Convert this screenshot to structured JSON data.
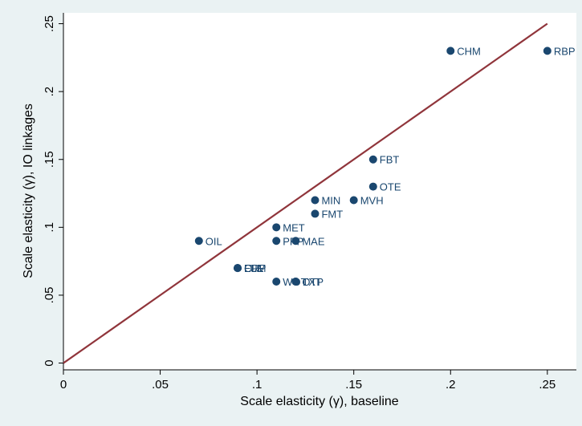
{
  "chart_data": {
    "type": "scatter",
    "title": "",
    "xlabel": "Scale elasticity (γ), baseline",
    "ylabel": "Scale elasticity (γ), IO linkages",
    "xlim": [
      0,
      0.265
    ],
    "ylim": [
      -0.005,
      0.258
    ],
    "xticks": [
      {
        "value": 0,
        "label": "0"
      },
      {
        "value": 0.05,
        "label": ".05"
      },
      {
        "value": 0.1,
        "label": ".1"
      },
      {
        "value": 0.15,
        "label": ".15"
      },
      {
        "value": 0.2,
        "label": ".2"
      },
      {
        "value": 0.25,
        "label": ".25"
      }
    ],
    "yticks": [
      {
        "value": 0,
        "label": "0"
      },
      {
        "value": 0.05,
        "label": ".05"
      },
      {
        "value": 0.1,
        "label": ".1"
      },
      {
        "value": 0.15,
        "label": ".15"
      },
      {
        "value": 0.2,
        "label": ".2"
      },
      {
        "value": 0.25,
        "label": ".25"
      }
    ],
    "grid": false,
    "points": [
      {
        "label": "CHM",
        "x": 0.2,
        "y": 0.23
      },
      {
        "label": "RBP",
        "x": 0.25,
        "y": 0.23
      },
      {
        "label": "FBT",
        "x": 0.16,
        "y": 0.15
      },
      {
        "label": "OTE",
        "x": 0.16,
        "y": 0.13
      },
      {
        "label": "MIN",
        "x": 0.13,
        "y": 0.12
      },
      {
        "label": "MVH",
        "x": 0.15,
        "y": 0.12
      },
      {
        "label": "FMT",
        "x": 0.13,
        "y": 0.11
      },
      {
        "label": "MET",
        "x": 0.11,
        "y": 0.1
      },
      {
        "label": "OIL",
        "x": 0.07,
        "y": 0.09
      },
      {
        "label": "PPP",
        "x": 0.11,
        "y": 0.09
      },
      {
        "label": "MAE",
        "x": 0.12,
        "y": 0.09
      },
      {
        "label": "CRP",
        "x": 0.09,
        "y": 0.07
      },
      {
        "label": "ELE",
        "x": 0.09,
        "y": 0.07
      },
      {
        "label": "LUM",
        "x": 0.09,
        "y": 0.07
      },
      {
        "label": "WOT",
        "x": 0.11,
        "y": 0.06
      },
      {
        "label": "OTP",
        "x": 0.12,
        "y": 0.06
      },
      {
        "label": "TXT",
        "x": 0.12,
        "y": 0.06
      }
    ],
    "reference_line": {
      "from": [
        0,
        0
      ],
      "to": [
        0.25,
        0.25
      ]
    },
    "colors": {
      "background": "#eaf2f3",
      "plot_area": "#ffffff",
      "marker": "#1a476f",
      "label": "#1a476f",
      "line": "#90353b"
    }
  }
}
